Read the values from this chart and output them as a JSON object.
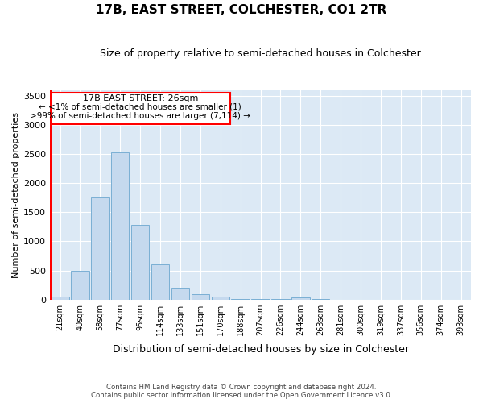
{
  "title": "17B, EAST STREET, COLCHESTER, CO1 2TR",
  "subtitle": "Size of property relative to semi-detached houses in Colchester",
  "xlabel": "Distribution of semi-detached houses by size in Colchester",
  "ylabel": "Number of semi-detached properties",
  "bar_color": "#c5d9ee",
  "bar_edge_color": "#7aafd4",
  "background_color": "#dce9f5",
  "annotation_text_line1": "17B EAST STREET: 26sqm",
  "annotation_text_line2": "← <1% of semi-detached houses are smaller (1)",
  "annotation_text_line3": ">99% of semi-detached houses are larger (7,114) →",
  "categories": [
    "21sqm",
    "40sqm",
    "58sqm",
    "77sqm",
    "95sqm",
    "114sqm",
    "133sqm",
    "151sqm",
    "170sqm",
    "188sqm",
    "207sqm",
    "226sqm",
    "244sqm",
    "263sqm",
    "281sqm",
    "300sqm",
    "319sqm",
    "337sqm",
    "356sqm",
    "374sqm",
    "393sqm"
  ],
  "values": [
    50,
    500,
    1760,
    2530,
    1280,
    610,
    200,
    90,
    55,
    5,
    5,
    5,
    30,
    5,
    0,
    0,
    0,
    0,
    0,
    0,
    0
  ],
  "ylim": [
    0,
    3600
  ],
  "yticks": [
    0,
    500,
    1000,
    1500,
    2000,
    2500,
    3000,
    3500
  ],
  "footer_line1": "Contains HM Land Registry data © Crown copyright and database right 2024.",
  "footer_line2": "Contains public sector information licensed under the Open Government Licence v3.0."
}
